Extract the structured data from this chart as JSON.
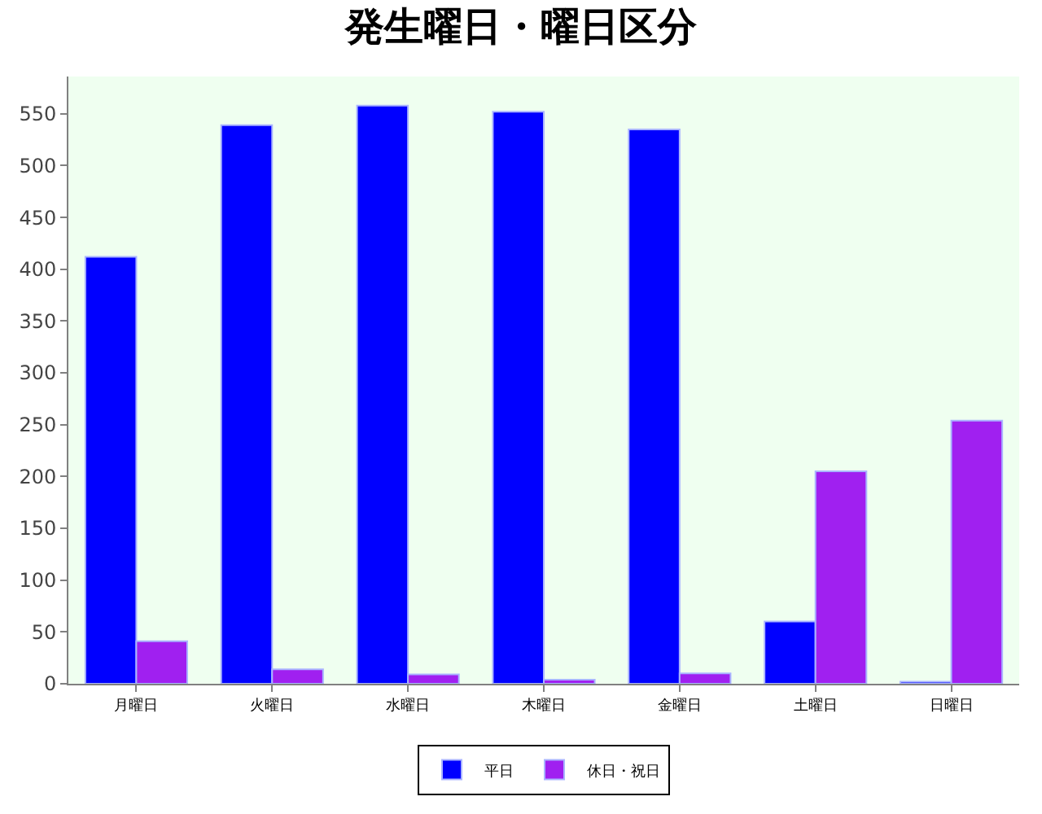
{
  "chart_data": {
    "type": "bar",
    "title": "発生曜日・曜日区分",
    "categories": [
      "月曜日",
      "火曜日",
      "水曜日",
      "木曜日",
      "金曜日",
      "土曜日",
      "日曜日"
    ],
    "series": [
      {
        "name": "平日",
        "color": "#0000ff",
        "values": [
          412,
          539,
          558,
          552,
          535,
          60,
          2
        ]
      },
      {
        "name": "休日・祝日",
        "color": "#a020f0",
        "values": [
          41,
          14,
          9,
          4,
          10,
          205,
          254
        ]
      }
    ],
    "ylim": [
      0,
      586
    ],
    "yticks": [
      0,
      50,
      100,
      150,
      200,
      250,
      300,
      350,
      400,
      450,
      500,
      550
    ],
    "grid": false,
    "legend": "bottom"
  }
}
